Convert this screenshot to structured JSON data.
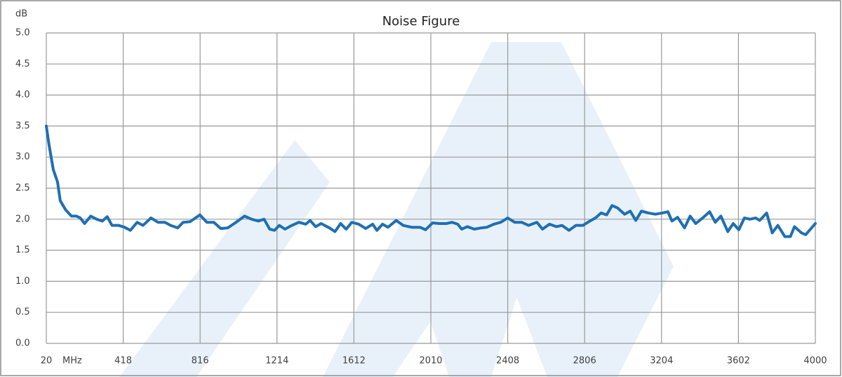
{
  "chart_data": {
    "type": "line",
    "title": "Noise Figure",
    "y_unit": "dB",
    "x_unit": "MHz",
    "xlim": [
      20,
      4000
    ],
    "xticks": [
      20,
      418,
      816,
      1214,
      1612,
      2010,
      2408,
      2806,
      3204,
      3602,
      4000
    ],
    "ylim": [
      0,
      5
    ],
    "yticks": [
      {
        "value": 0,
        "label": "0.0"
      },
      0.5,
      {
        "value": 1,
        "label": "1.0"
      },
      1.5,
      {
        "value": 2,
        "label": "2.0"
      },
      2.5,
      {
        "value": 3,
        "label": "3.0"
      },
      3.5,
      {
        "value": 4,
        "label": "4.0"
      },
      4.5,
      {
        "value": 5,
        "label": "5.0"
      }
    ],
    "grid": true,
    "x": [
      20,
      34,
      56,
      78,
      92,
      120,
      150,
      175,
      196,
      218,
      250,
      280,
      310,
      335,
      360,
      395,
      425,
      455,
      490,
      520,
      562,
      598,
      634,
      663,
      700,
      728,
      764,
      815,
      851,
      887,
      923,
      959,
      1002,
      1046,
      1082,
      1118,
      1147,
      1176,
      1201,
      1226,
      1255,
      1291,
      1327,
      1363,
      1385,
      1414,
      1442,
      1485,
      1514,
      1543,
      1572,
      1601,
      1637,
      1673,
      1709,
      1731,
      1760,
      1788,
      1831,
      1867,
      1911,
      1954,
      1983,
      2019,
      2055,
      2091,
      2120,
      2149,
      2170,
      2199,
      2235,
      2271,
      2300,
      2336,
      2372,
      2408,
      2444,
      2480,
      2516,
      2559,
      2588,
      2624,
      2660,
      2689,
      2725,
      2761,
      2797,
      2833,
      2862,
      2891,
      2920,
      2948,
      2977,
      3013,
      3042,
      3071,
      3100,
      3136,
      3172,
      3208,
      3237,
      3258,
      3287,
      3323,
      3352,
      3381,
      3417,
      3453,
      3482,
      3511,
      3547,
      3575,
      3604,
      3633,
      3662,
      3691,
      3712,
      3748,
      3777,
      3806,
      3842,
      3871,
      3892,
      3928,
      3950,
      4000
    ],
    "series": [
      {
        "color": "#1f6fb2",
        "values": [
          3.5,
          3.2,
          2.8,
          2.6,
          2.3,
          2.15,
          2.05,
          2.05,
          2.02,
          1.93,
          2.05,
          2.0,
          1.97,
          2.04,
          1.9,
          1.9,
          1.87,
          1.82,
          1.95,
          1.9,
          2.02,
          1.95,
          1.95,
          1.9,
          1.86,
          1.95,
          1.96,
          2.07,
          1.95,
          1.95,
          1.85,
          1.86,
          1.95,
          2.05,
          2.0,
          1.97,
          2.0,
          1.84,
          1.82,
          1.9,
          1.84,
          1.9,
          1.95,
          1.92,
          1.98,
          1.88,
          1.93,
          1.86,
          1.8,
          1.93,
          1.84,
          1.95,
          1.92,
          1.85,
          1.92,
          1.82,
          1.92,
          1.87,
          1.98,
          1.9,
          1.87,
          1.87,
          1.83,
          1.94,
          1.93,
          1.93,
          1.95,
          1.92,
          1.84,
          1.88,
          1.84,
          1.86,
          1.87,
          1.92,
          1.95,
          2.02,
          1.95,
          1.95,
          1.9,
          1.95,
          1.84,
          1.92,
          1.88,
          1.9,
          1.82,
          1.9,
          1.9,
          1.97,
          2.02,
          2.1,
          2.07,
          2.22,
          2.18,
          2.08,
          2.13,
          1.98,
          2.13,
          2.1,
          2.08,
          2.1,
          2.12,
          1.97,
          2.03,
          1.86,
          2.05,
          1.93,
          2.02,
          2.12,
          1.95,
          2.05,
          1.8,
          1.93,
          1.83,
          2.02,
          2.0,
          2.02,
          1.98,
          2.1,
          1.78,
          1.9,
          1.72,
          1.72,
          1.88,
          1.78,
          1.75,
          1.93
        ]
      }
    ]
  }
}
